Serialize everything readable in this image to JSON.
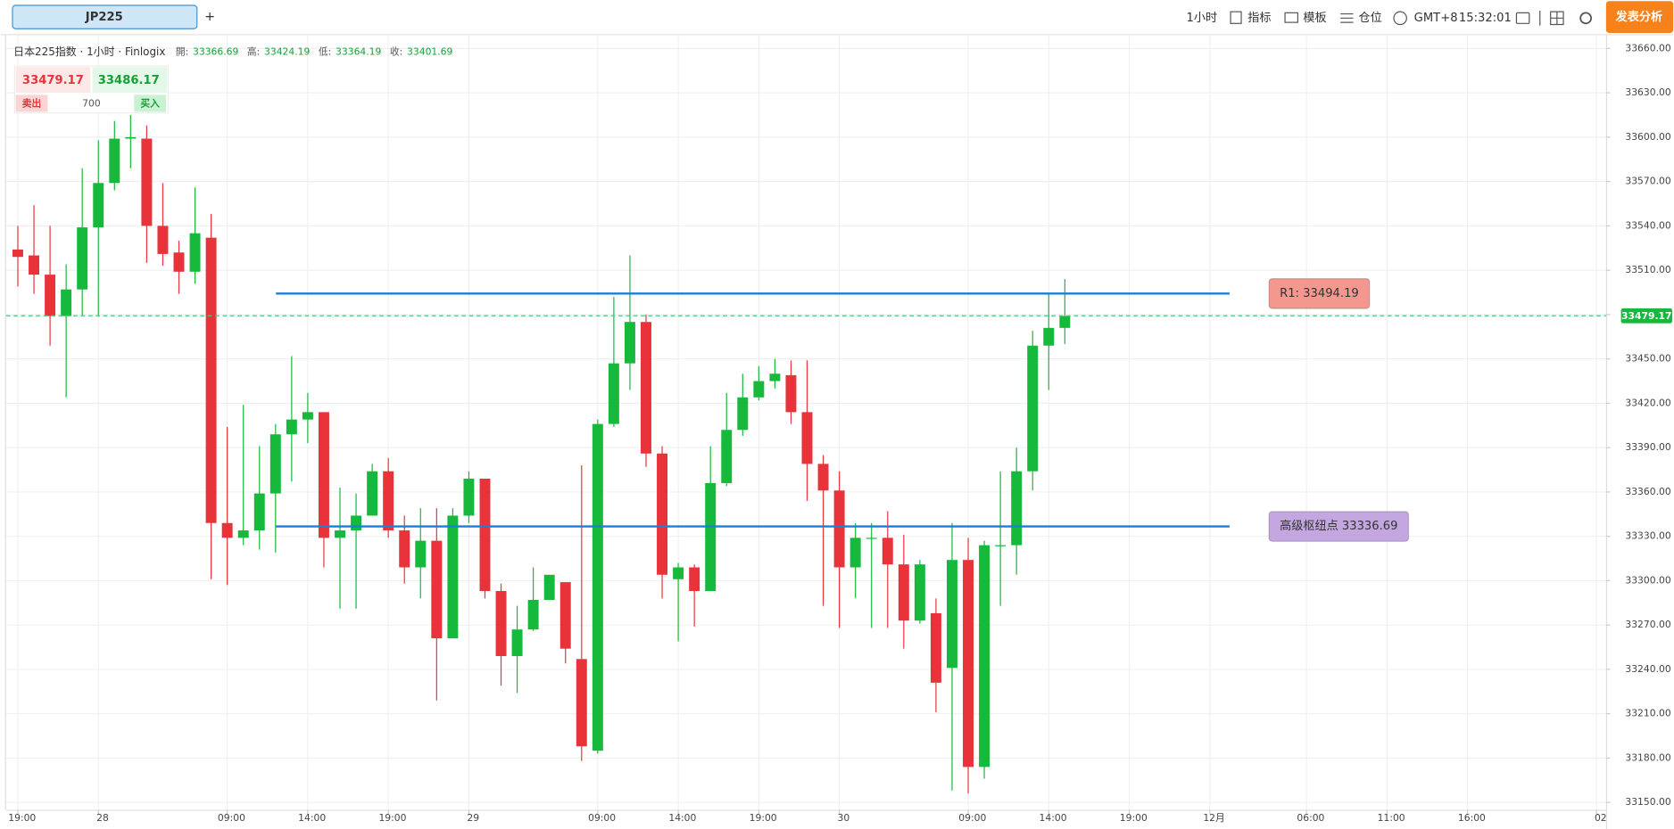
{
  "toolbar": {
    "symbol": "JP225",
    "add": "+",
    "interval": "1小时",
    "indicators": "指标",
    "templates": "模板",
    "positions": "仓位",
    "timezone": "GMT+8",
    "time": "15:32:01",
    "publish": "发表分析"
  },
  "header": {
    "title": "日本225指数 · 1小时 · Finlogix",
    "ohlc": [
      {
        "label": "開:",
        "value": 33366.69
      },
      {
        "label": "高:",
        "value": 33424.19
      },
      {
        "label": "低:",
        "value": 33364.19
      },
      {
        "label": "收:",
        "value": 33401.69
      }
    ]
  },
  "trade": {
    "sell_price": 33479.17,
    "buy_price": 33486.17,
    "sell": "卖出",
    "buy": "买入",
    "quantity": 700
  },
  "chart_data": {
    "type": "candlestick",
    "up_color": "#16b93c",
    "down_color": "#e8333a",
    "grid": true,
    "ohlc": [
      [
        33524,
        33540,
        33499,
        33519
      ],
      [
        33520,
        33554,
        33494,
        33507
      ],
      [
        33507,
        33540,
        33459,
        33479
      ],
      [
        33479,
        33514,
        33424,
        33497
      ],
      [
        33497,
        33579,
        33479,
        33539
      ],
      [
        33539,
        33598,
        33479,
        33569
      ],
      [
        33569,
        33611,
        33564,
        33599
      ],
      [
        33599,
        33615,
        33579,
        33600
      ],
      [
        33599,
        33608,
        33515,
        33540
      ],
      [
        33540,
        33569,
        33513,
        33521
      ],
      [
        33522,
        33530,
        33494,
        33509
      ],
      [
        33509,
        33566,
        33501,
        33535
      ],
      [
        33532,
        33548,
        33301,
        33339
      ],
      [
        33339,
        33404,
        33297,
        33329
      ],
      [
        33329,
        33419,
        33324,
        33334
      ],
      [
        33334,
        33391,
        33321,
        33359
      ],
      [
        33359,
        33406,
        33319,
        33399
      ],
      [
        33399,
        33452,
        33367,
        33409
      ],
      [
        33409,
        33427,
        33393,
        33414
      ],
      [
        33414,
        33414,
        33309,
        33329
      ],
      [
        33329,
        33363,
        33281,
        33334
      ],
      [
        33334,
        33359,
        33281,
        33344
      ],
      [
        33344,
        33379,
        33344,
        33374
      ],
      [
        33374,
        33383,
        33329,
        33334
      ],
      [
        33334,
        33344,
        33298,
        33309
      ],
      [
        33309,
        33349,
        33288,
        33327
      ],
      [
        33327,
        33349,
        33219,
        33261
      ],
      [
        33261,
        33349,
        33261,
        33344
      ],
      [
        33344,
        33374,
        33339,
        33369
      ],
      [
        33369,
        33369,
        33288,
        33293
      ],
      [
        33293,
        33298,
        33229,
        33249
      ],
      [
        33249,
        33283,
        33224,
        33267
      ],
      [
        33267,
        33309,
        33266,
        33287
      ],
      [
        33287,
        33304,
        33287,
        33304
      ],
      [
        33299,
        33299,
        33244,
        33254
      ],
      [
        33247,
        33378,
        33178,
        33188
      ],
      [
        33185,
        33409,
        33183,
        33406
      ],
      [
        33406,
        33492,
        33404,
        33447
      ],
      [
        33447,
        33520,
        33429,
        33475
      ],
      [
        33475,
        33480,
        33377,
        33386
      ],
      [
        33386,
        33391,
        33288,
        33304
      ],
      [
        33301,
        33312,
        33259,
        33309
      ],
      [
        33309,
        33311,
        33269,
        33293
      ],
      [
        33293,
        33391,
        33293,
        33366
      ],
      [
        33366,
        33427,
        33364,
        33402
      ],
      [
        33402,
        33440,
        33398,
        33424
      ],
      [
        33424,
        33445,
        33422,
        33435
      ],
      [
        33435,
        33450,
        33430,
        33440
      ],
      [
        33439,
        33449,
        33406,
        33414
      ],
      [
        33414,
        33449,
        33354,
        33379
      ],
      [
        33379,
        33385,
        33283,
        33361
      ],
      [
        33361,
        33374,
        33268,
        33309
      ],
      [
        33309,
        33339,
        33288,
        33329
      ],
      [
        33329,
        33339,
        33268,
        33329
      ],
      [
        33329,
        33347,
        33268,
        33311
      ],
      [
        33311,
        33331,
        33254,
        33273
      ],
      [
        33273,
        33314,
        33271,
        33311
      ],
      [
        33278,
        33288,
        33211,
        33231
      ],
      [
        33241,
        33339,
        33158,
        33314
      ],
      [
        33314,
        33329,
        33156,
        33174
      ],
      [
        33174,
        33327,
        33166,
        33324
      ],
      [
        33324,
        33374,
        33283,
        33324
      ],
      [
        33324,
        33390,
        33304,
        33374
      ],
      [
        33374,
        33469,
        33361,
        33459
      ],
      [
        33459,
        33494,
        33429,
        33471
      ],
      [
        33471,
        33504,
        33460,
        33479
      ]
    ],
    "ylim": [
      33145,
      33669
    ],
    "yticks": [
      {
        "value": 33150,
        "label": "33150.00"
      },
      {
        "value": 33180,
        "label": "33180.00"
      },
      {
        "value": 33210,
        "label": "33210.00"
      },
      {
        "value": 33240,
        "label": "33240.00"
      },
      {
        "value": 33270,
        "label": "33270.00"
      },
      {
        "value": 33300,
        "label": "33300.00"
      },
      {
        "value": 33330,
        "label": "33330.00"
      },
      {
        "value": 33360,
        "label": "33360.00"
      },
      {
        "value": 33390,
        "label": "33390.00"
      },
      {
        "value": 33420,
        "label": "33420.00"
      },
      {
        "value": 33450,
        "label": "33450.00"
      },
      {
        "value": 33480,
        "label": "33480.00"
      },
      {
        "value": 33510,
        "label": "33510.00"
      },
      {
        "value": 33540,
        "label": "33540.00"
      },
      {
        "value": 33570,
        "label": "33570.00"
      },
      {
        "value": 33600,
        "label": "33600.00"
      },
      {
        "value": 33630,
        "label": "33630.00"
      },
      {
        "value": 33660,
        "label": "33660.00"
      }
    ],
    "xlim": [
      -0.73,
      98.6
    ],
    "xticks": [
      {
        "value": 0,
        "label": "19:00"
      },
      {
        "value": 5,
        "label": "28"
      },
      {
        "value": 13,
        "label": "09:00"
      },
      {
        "value": 18,
        "label": "14:00"
      },
      {
        "value": 23,
        "label": "19:00"
      },
      {
        "value": 28,
        "label": "29"
      },
      {
        "value": 36,
        "label": "09:00"
      },
      {
        "value": 41,
        "label": "14:00"
      },
      {
        "value": 46,
        "label": "19:00"
      },
      {
        "value": 51,
        "label": "30"
      },
      {
        "value": 59,
        "label": "09:00"
      },
      {
        "value": 64,
        "label": "14:00"
      },
      {
        "value": 69,
        "label": "19:00"
      },
      {
        "value": 74,
        "label": "12月"
      },
      {
        "value": 80,
        "label": "06:00"
      },
      {
        "value": 85,
        "label": "11:00"
      },
      {
        "value": 90,
        "label": "16:00"
      },
      {
        "value": 98,
        "label": "02"
      }
    ],
    "last_price": 33479.17,
    "levels": [
      {
        "label": "R1: 33494.19",
        "value": 33494.19,
        "color": "#f4978e"
      },
      {
        "label": "高级枢纽点 33336.69",
        "value": 33336.69,
        "color": "#c4a6e0"
      }
    ],
    "level_line_color": "#1a7fd6"
  }
}
